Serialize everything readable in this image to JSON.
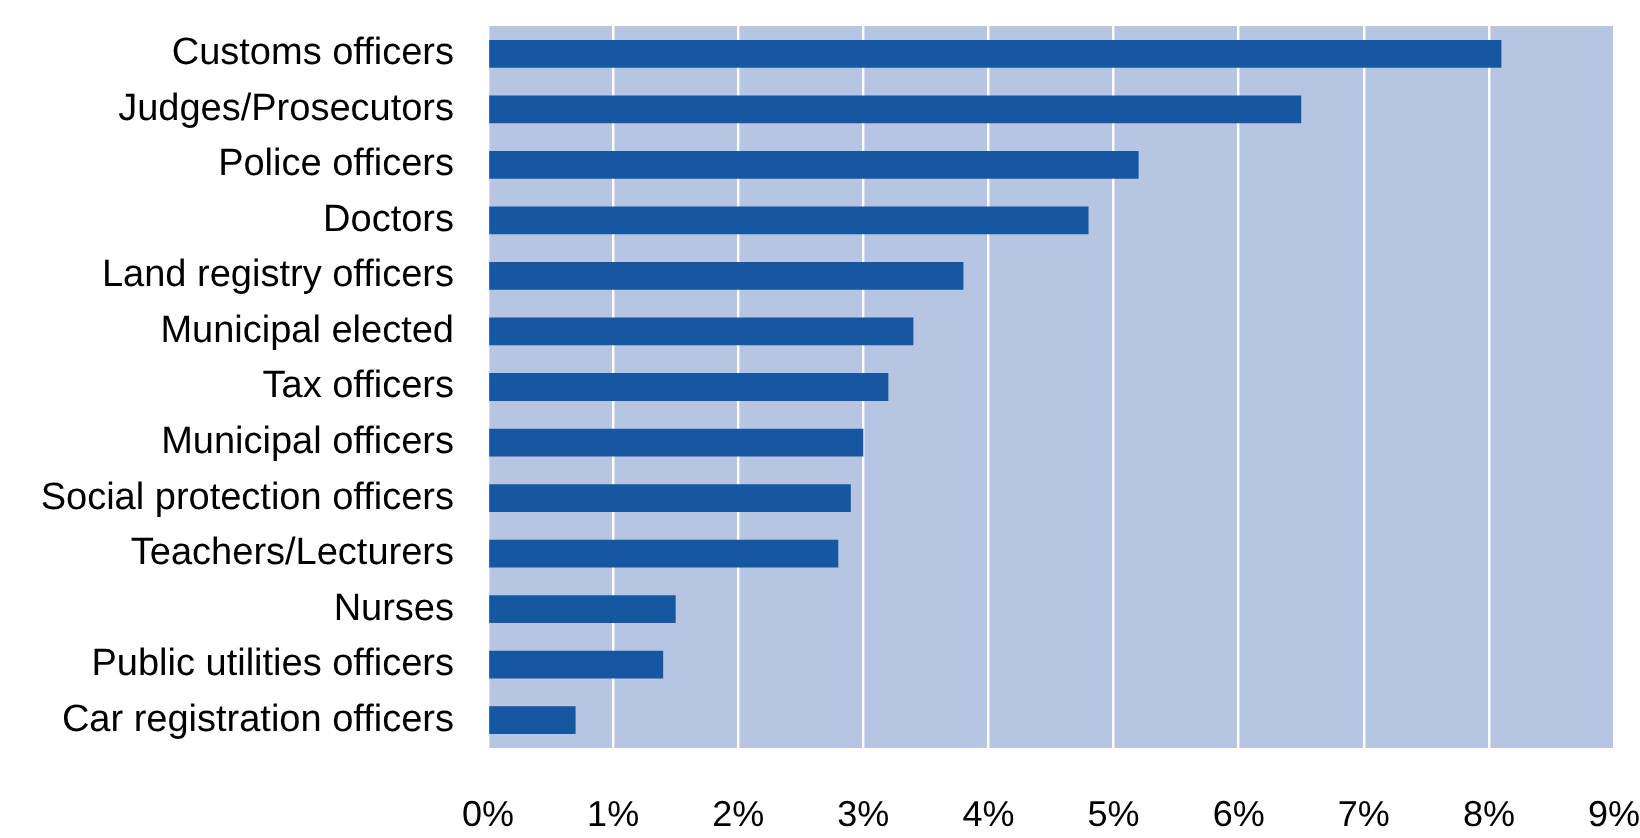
{
  "chart_data": {
    "type": "bar",
    "orientation": "horizontal",
    "categories": [
      "Customs officers",
      "Judges/Prosecutors",
      "Police officers",
      "Doctors",
      "Land registry officers",
      "Municipal elected",
      "Tax officers",
      "Municipal officers",
      "Social protection officers",
      "Teachers/Lecturers",
      "Nurses",
      "Public utilities officers",
      "Car registration officers"
    ],
    "values": [
      8.1,
      6.5,
      5.2,
      4.8,
      3.8,
      3.4,
      3.2,
      3.0,
      2.9,
      2.8,
      1.5,
      1.4,
      0.7
    ],
    "color": "#1557a0",
    "xlim": [
      0,
      9
    ],
    "xticks": [
      {
        "value": 0,
        "label": "0%"
      },
      {
        "value": 1,
        "label": "1%"
      },
      {
        "value": 2,
        "label": "2%"
      },
      {
        "value": 3,
        "label": "3%"
      },
      {
        "value": 4,
        "label": "4%"
      },
      {
        "value": 5,
        "label": "5%"
      },
      {
        "value": 6,
        "label": "6%"
      },
      {
        "value": 7,
        "label": "7%"
      },
      {
        "value": 8,
        "label": "8%"
      },
      {
        "value": 9,
        "label": "9%"
      }
    ],
    "grid": "x"
  }
}
